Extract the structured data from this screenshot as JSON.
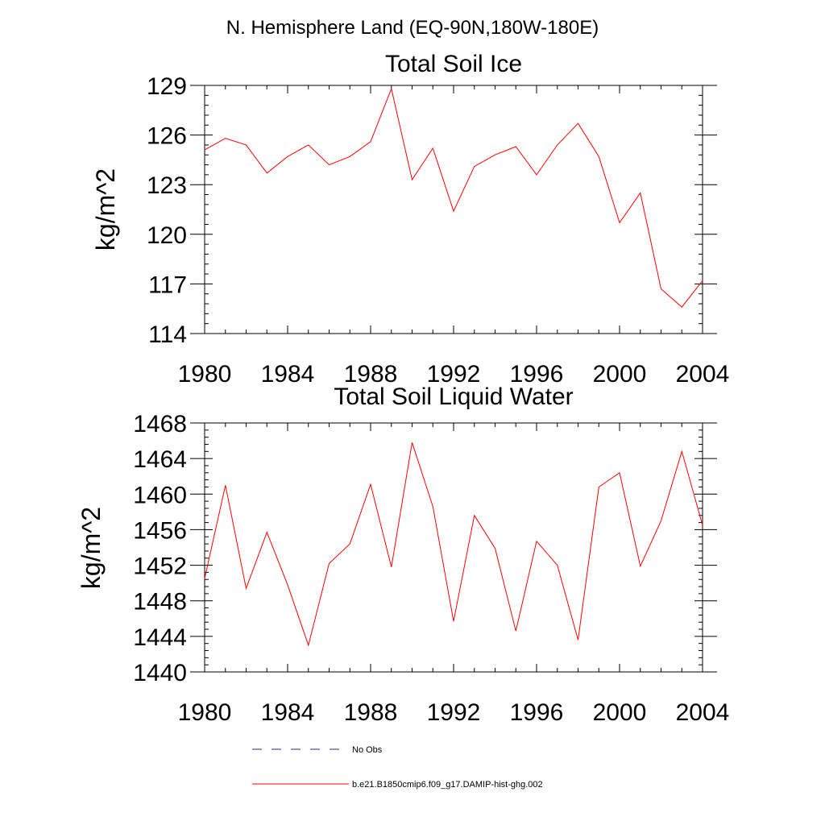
{
  "suptitle": "N. Hemisphere Land (EQ-90N,180W-180E)",
  "colors": {
    "series": "#ff0000",
    "obs": "#2a2a80",
    "axis": "#000000"
  },
  "legend": {
    "items": [
      {
        "label": "No Obs",
        "style": "dashed",
        "color": "#2a2a80"
      },
      {
        "label": "b.e21.B1850cmip6.f09_g17.DAMIP-hist-ghg.002",
        "style": "solid",
        "color": "#ff0000"
      }
    ]
  },
  "chart_data": [
    {
      "type": "line",
      "title": "Total Soil Ice",
      "xlabel": "",
      "ylabel": "kg/m^2",
      "xlim": [
        1980,
        2004
      ],
      "ylim": [
        114,
        129
      ],
      "xticks": [
        1980,
        1984,
        1988,
        1992,
        1996,
        2000,
        2004
      ],
      "yticks": [
        114,
        117,
        120,
        123,
        126,
        129
      ],
      "yminor_step": 0.6,
      "grid": false,
      "x": [
        1980,
        1981,
        1982,
        1983,
        1984,
        1985,
        1986,
        1987,
        1988,
        1989,
        1990,
        1991,
        1992,
        1993,
        1994,
        1995,
        1996,
        1997,
        1998,
        1999,
        2000,
        2001,
        2002,
        2003,
        2004
      ],
      "series": [
        {
          "name": "b.e21.B1850cmip6.f09_g17.DAMIP-hist-ghg.002",
          "color": "#ff0000",
          "values": [
            125.1,
            125.8,
            125.4,
            123.7,
            124.7,
            125.4,
            124.2,
            124.7,
            125.6,
            128.8,
            123.3,
            125.2,
            121.4,
            124.1,
            124.8,
            125.3,
            123.6,
            125.4,
            126.7,
            124.7,
            120.7,
            122.5,
            116.7,
            115.6,
            117.2
          ]
        }
      ]
    },
    {
      "type": "line",
      "title": "Total Soil Liquid Water",
      "xlabel": "",
      "ylabel": "kg/m^2",
      "xlim": [
        1980,
        2004
      ],
      "ylim": [
        1440,
        1468
      ],
      "xticks": [
        1980,
        1984,
        1988,
        1992,
        1996,
        2000,
        2004
      ],
      "yticks": [
        1440,
        1444,
        1448,
        1452,
        1456,
        1460,
        1464,
        1468
      ],
      "yminor_step": 0.8,
      "grid": false,
      "x": [
        1980,
        1981,
        1982,
        1983,
        1984,
        1985,
        1986,
        1987,
        1988,
        1989,
        1990,
        1991,
        1992,
        1993,
        1994,
        1995,
        1996,
        1997,
        1998,
        1999,
        2000,
        2001,
        2002,
        2003,
        2004
      ],
      "series": [
        {
          "name": "b.e21.B1850cmip6.f09_g17.DAMIP-hist-ghg.002",
          "color": "#ff0000",
          "values": [
            1450.5,
            1461.0,
            1449.4,
            1455.7,
            1449.8,
            1443.0,
            1452.2,
            1454.4,
            1461.1,
            1451.8,
            1465.8,
            1458.6,
            1445.7,
            1457.6,
            1453.9,
            1444.6,
            1454.7,
            1452.0,
            1443.6,
            1460.8,
            1462.4,
            1451.9,
            1457.0,
            1464.8,
            1456.5
          ]
        }
      ]
    }
  ]
}
